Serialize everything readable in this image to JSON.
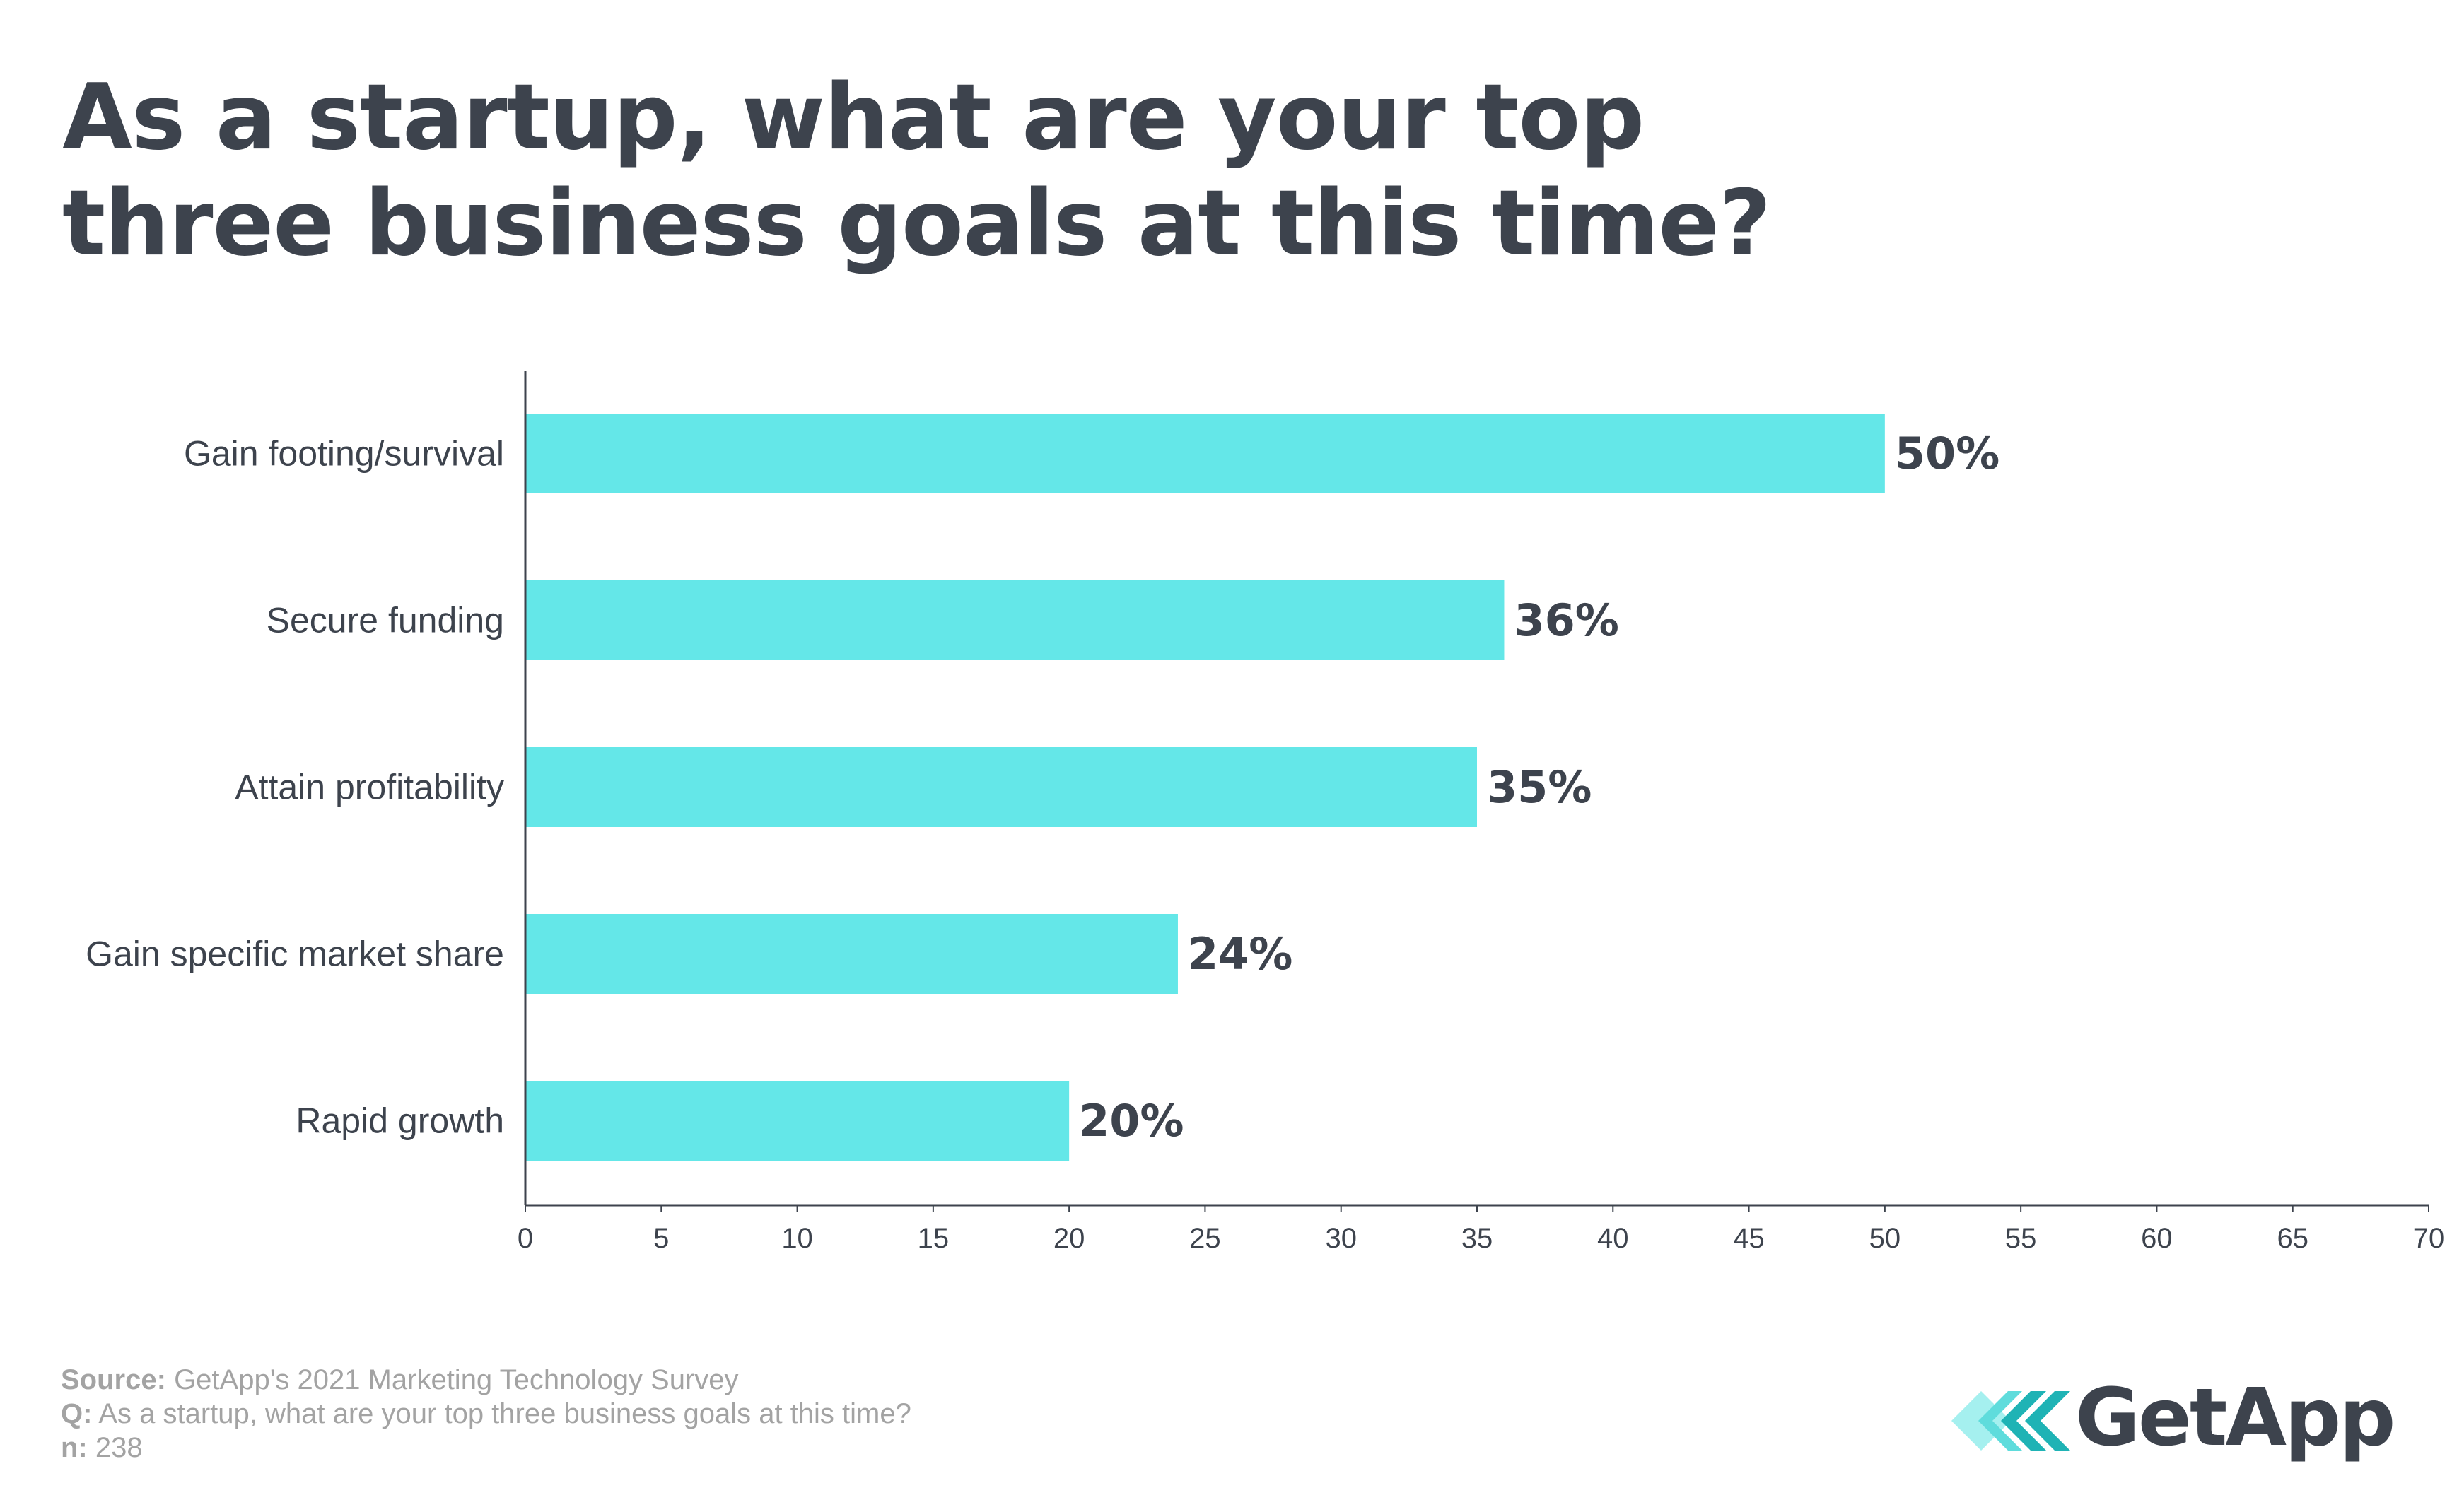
{
  "colors": {
    "bar": "#64e7e8",
    "text": "#3d434d",
    "axis": "#3d434d",
    "footer": "#a3a3a3",
    "logo_text": "#3d434d",
    "logo_mark_light": "#a5f0ef",
    "logo_mark_mid": "#5fdcdc",
    "logo_mark_dark": "#1fb3b5"
  },
  "chart_data": {
    "type": "bar",
    "orientation": "horizontal",
    "title": "As a startup, what are your top three business goals at this time?",
    "title_lines": [
      "As a startup, what are your top",
      "three business goals at this time?"
    ],
    "categories": [
      "Gain footing/survival",
      "Secure funding",
      "Attain profitability",
      "Gain specific market share",
      "Rapid growth"
    ],
    "values": [
      50,
      36,
      35,
      24,
      20
    ],
    "value_labels": [
      "50%",
      "36%",
      "35%",
      "24%",
      "20%"
    ],
    "xlim": [
      0,
      70
    ],
    "xticks": [
      0,
      5,
      10,
      15,
      20,
      25,
      30,
      35,
      40,
      45,
      50,
      55,
      60,
      65,
      70
    ],
    "grid": false,
    "legend": "none"
  },
  "footer": {
    "source_label": "Source:",
    "source_text": "GetApp's 2021 Marketing Technology Survey",
    "q_label": "Q:",
    "q_text": "As a startup, what are your top three business goals at this time?",
    "n_label": "n:",
    "n_text": "238"
  },
  "logo": {
    "text": "GetApp",
    "icon": "getapp-chevron-logo-icon"
  }
}
